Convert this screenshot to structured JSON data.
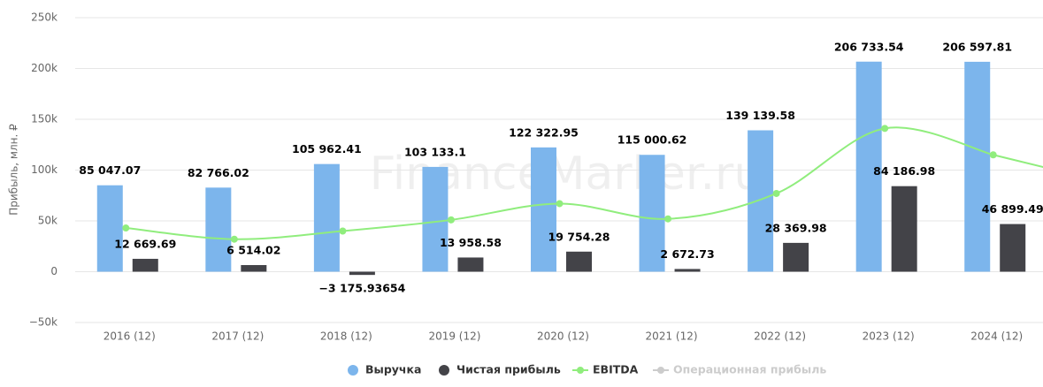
{
  "chart_data": {
    "type": "bar",
    "y_label": "Прибыль, млн. ₽",
    "watermark": "FinanceMarker.ru",
    "categories": [
      "2016 (12)",
      "2017 (12)",
      "2018 (12)",
      "2019 (12)",
      "2020 (12)",
      "2021 (12)",
      "2022 (12)",
      "2023 (12)",
      "2024 (12)"
    ],
    "series": [
      {
        "name": "Выручка",
        "type": "bar",
        "color": "#7cb5ec",
        "values": [
          85047.07,
          82766.02,
          105962.41,
          103133.1,
          122322.95,
          115000.62,
          139139.58,
          206733.54,
          206597.81
        ],
        "value_labels": [
          "85 047.07",
          "82 766.02",
          "105 962.41",
          "103 133.1",
          "122 322.95",
          "115 000.62",
          "139 139.58",
          "206 733.54",
          "206 597.81"
        ]
      },
      {
        "name": "Чистая прибыль",
        "type": "bar",
        "color": "#434348",
        "values": [
          12669.69,
          6514.02,
          -3175.93654,
          13958.58,
          19754.28,
          2672.73,
          28369.98,
          84186.98,
          46899.49
        ],
        "value_labels": [
          "12 669.69",
          "6 514.02",
          "−3 175.93654",
          "13 958.58",
          "19 754.28",
          "2 672.73",
          "28 369.98",
          "84 186.98",
          "46 899.49"
        ]
      },
      {
        "name": "EBITDA",
        "type": "line",
        "color": "#90ed7d",
        "values": [
          43000,
          32000,
          40000,
          51000,
          67000,
          52000,
          77000,
          141000,
          115000
        ]
      },
      {
        "name": "Операционная прибыль",
        "type": "line",
        "color": "#cccccc",
        "visible": false,
        "values": [
          null,
          null,
          null,
          null,
          null,
          null,
          null,
          null,
          null
        ]
      }
    ],
    "ylim": [
      -50000,
      250000
    ],
    "yticks": [
      {
        "value": -50000,
        "label": "−50k"
      },
      0,
      {
        "value": 50000,
        "label": "50k"
      },
      {
        "value": 100000,
        "label": "100k"
      },
      {
        "value": 150000,
        "label": "150k"
      },
      {
        "value": 200000,
        "label": "200k"
      },
      {
        "value": 250000,
        "label": "250k"
      }
    ],
    "grid": true,
    "legend": "bottom"
  }
}
